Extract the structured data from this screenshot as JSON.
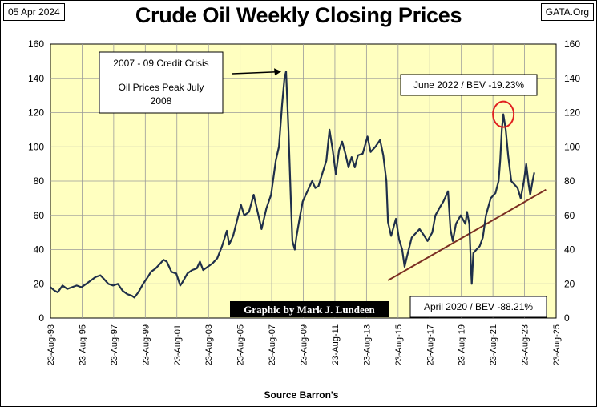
{
  "header": {
    "date": "05 Apr 2024",
    "site": "GATA.Org"
  },
  "chart_data": {
    "type": "line",
    "title": "Crude Oil Weekly Closing Prices",
    "xlabel": "Source  Barron's",
    "ylabel": "",
    "ylim": [
      0,
      160
    ],
    "xlim": [
      1993.64,
      2025.64
    ],
    "yticks": [
      "0",
      "20",
      "40",
      "60",
      "80",
      "100",
      "120",
      "140",
      "160"
    ],
    "xticks": [
      "23-Aug-93",
      "23-Aug-95",
      "23-Aug-97",
      "23-Aug-99",
      "23-Aug-01",
      "23-Aug-03",
      "23-Aug-05",
      "23-Aug-07",
      "23-Aug-09",
      "23-Aug-11",
      "23-Aug-13",
      "23-Aug-15",
      "23-Aug-17",
      "23-Aug-19",
      "23-Aug-21",
      "23-Aug-23",
      "23-Aug-25"
    ],
    "grid": true,
    "colors": {
      "background": "#FFFFC0",
      "line": "#1F2F4A",
      "trend": "#7B2E22",
      "grid": "#9A9A9A",
      "highlight": "#E02020"
    },
    "series": [
      {
        "name": "Crude Oil Weekly Close",
        "x": [
          1993.64,
          1993.9,
          1994.1,
          1994.4,
          1994.7,
          1995.0,
          1995.3,
          1995.6,
          1995.9,
          1996.2,
          1996.5,
          1996.8,
          1997.0,
          1997.3,
          1997.6,
          1997.9,
          1998.2,
          1998.5,
          1998.8,
          1998.95,
          1999.2,
          1999.5,
          1999.8,
          2000.0,
          2000.3,
          2000.6,
          2000.8,
          2001.0,
          2001.3,
          2001.6,
          2001.85,
          2002.0,
          2002.3,
          2002.6,
          2002.9,
          2003.1,
          2003.3,
          2003.6,
          2003.9,
          2004.2,
          2004.5,
          2004.8,
          2004.95,
          2005.2,
          2005.5,
          2005.7,
          2005.9,
          2006.2,
          2006.5,
          2006.8,
          2007.0,
          2007.3,
          2007.6,
          2007.9,
          2008.1,
          2008.3,
          2008.45,
          2008.55,
          2008.7,
          2008.85,
          2008.95,
          2009.1,
          2009.2,
          2009.4,
          2009.6,
          2009.9,
          2010.2,
          2010.4,
          2010.6,
          2010.9,
          2011.1,
          2011.3,
          2011.5,
          2011.7,
          2011.9,
          2012.1,
          2012.3,
          2012.5,
          2012.7,
          2012.9,
          2013.1,
          2013.4,
          2013.7,
          2013.9,
          2014.2,
          2014.5,
          2014.7,
          2014.9,
          2015.0,
          2015.2,
          2015.5,
          2015.7,
          2015.9,
          2016.05,
          2016.2,
          2016.5,
          2016.8,
          2017.0,
          2017.3,
          2017.5,
          2017.8,
          2018.0,
          2018.3,
          2018.5,
          2018.8,
          2018.95,
          2019.1,
          2019.3,
          2019.6,
          2019.9,
          2020.0,
          2020.15,
          2020.25,
          2020.3,
          2020.4,
          2020.6,
          2020.8,
          2021.0,
          2021.2,
          2021.5,
          2021.8,
          2022.0,
          2022.1,
          2022.2,
          2022.3,
          2022.45,
          2022.6,
          2022.8,
          2023.0,
          2023.2,
          2023.4,
          2023.6,
          2023.75,
          2023.9,
          2024.0,
          2024.15,
          2024.26
        ],
        "y": [
          18,
          16,
          15,
          19,
          17,
          18,
          19,
          18,
          20,
          22,
          24,
          25,
          23,
          20,
          19,
          20,
          16,
          14,
          13,
          12,
          15,
          20,
          24,
          27,
          29,
          32,
          34,
          33,
          27,
          26,
          19,
          21,
          26,
          28,
          29,
          33,
          28,
          30,
          32,
          35,
          42,
          51,
          43,
          48,
          59,
          66,
          60,
          62,
          72,
          60,
          52,
          64,
          72,
          92,
          100,
          125,
          140,
          144,
          110,
          70,
          45,
          40,
          47,
          58,
          68,
          74,
          80,
          76,
          77,
          86,
          92,
          110,
          98,
          84,
          98,
          103,
          96,
          88,
          94,
          88,
          95,
          96,
          106,
          97,
          100,
          104,
          95,
          80,
          56,
          48,
          58,
          46,
          40,
          30,
          36,
          47,
          50,
          52,
          48,
          45,
          50,
          60,
          65,
          68,
          74,
          52,
          45,
          55,
          60,
          55,
          62,
          55,
          30,
          20,
          38,
          40,
          42,
          47,
          60,
          70,
          73,
          80,
          92,
          110,
          119,
          110,
          95,
          80,
          78,
          76,
          70,
          80,
          90,
          78,
          72,
          80,
          85
        ]
      }
    ],
    "trendline": {
      "x": [
        2015.0,
        2025.0
      ],
      "y": [
        22,
        75
      ]
    },
    "annotations": [
      {
        "id": "crisis",
        "lines": [
          "2007  - 09 Credit Crisis",
          "Oil Prices Peak July",
          "2008"
        ]
      },
      {
        "id": "june",
        "text": "June 2022  / BEV -19.23%"
      },
      {
        "id": "april",
        "text": "April 2020  / BEV -88.21%"
      },
      {
        "id": "credit",
        "text": "Graphic by Mark J. Lundeen"
      }
    ]
  }
}
